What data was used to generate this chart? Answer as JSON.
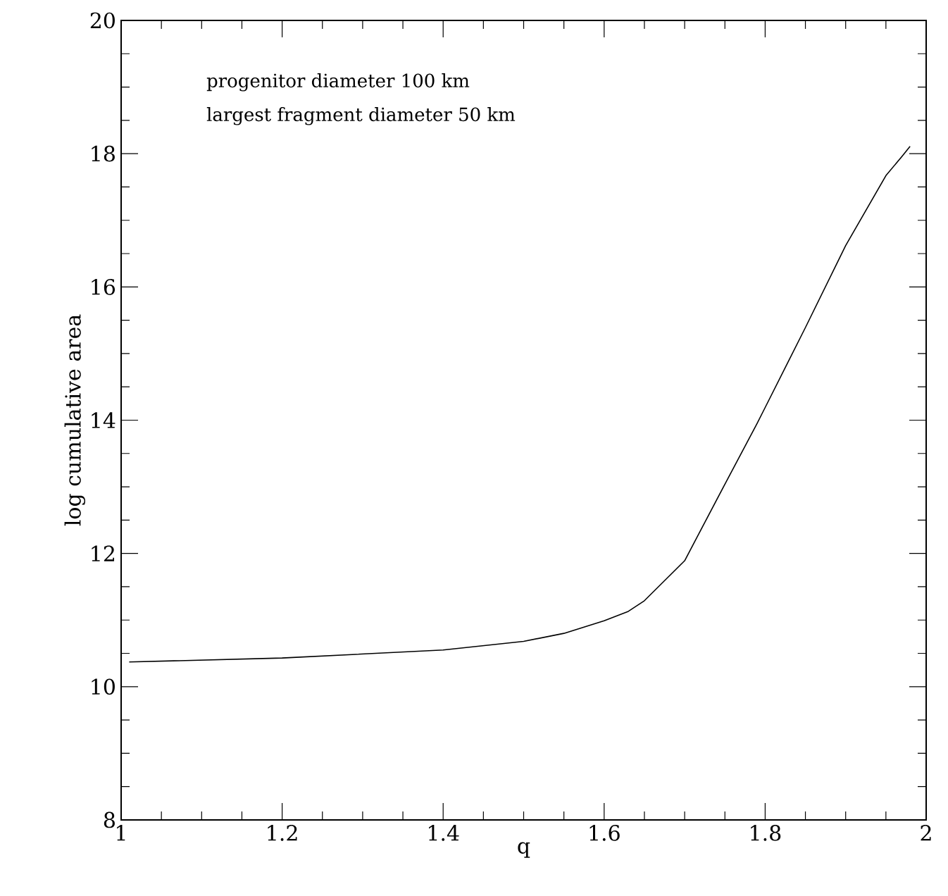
{
  "chart_data": {
    "type": "line",
    "xlabel": "q",
    "ylabel": "log cumulative area",
    "annotations": [
      "progenitor diameter 100 km",
      "largest fragment diameter 50 km"
    ],
    "xlim": [
      1,
      2
    ],
    "ylim": [
      8,
      20
    ],
    "xticks": [
      1,
      1.2,
      1.4,
      1.6,
      1.8,
      2
    ],
    "yticks": [
      8,
      10,
      12,
      14,
      16,
      18,
      20
    ],
    "grid": false,
    "marker": "none",
    "line_style": "solid",
    "series": [
      {
        "color": "#000000",
        "x": [
          1.01,
          1.2,
          1.4,
          1.5,
          1.55,
          1.6,
          1.63,
          1.65,
          1.7,
          1.75,
          1.79,
          1.8,
          1.85,
          1.9,
          1.95,
          1.97,
          1.98
        ],
        "values": [
          10.37,
          10.43,
          10.55,
          10.68,
          10.8,
          10.99,
          11.13,
          11.29,
          11.89,
          13.04,
          13.95,
          14.19,
          15.39,
          16.62,
          17.67,
          17.96,
          18.11
        ]
      }
    ]
  }
}
